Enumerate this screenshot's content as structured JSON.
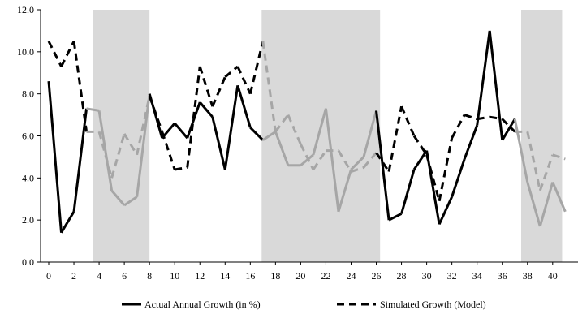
{
  "chart_data": {
    "type": "line",
    "title": "",
    "xlabel": "",
    "ylabel": "",
    "xlim": [
      -0.5,
      40.75
    ],
    "ylim": [
      0,
      12
    ],
    "x_ticks": [
      0,
      2,
      4,
      6,
      8,
      10,
      12,
      14,
      16,
      18,
      20,
      22,
      24,
      26,
      28,
      30,
      32,
      34,
      36,
      38,
      40
    ],
    "y_ticks": [
      0,
      2,
      4,
      6,
      8,
      10,
      12
    ],
    "y_tick_labels": [
      "0.0",
      "2.0",
      "4.0",
      "6.0",
      "8.0",
      "10.0",
      "12.0"
    ],
    "grid": false,
    "legend_position": "bottom",
    "shaded_periods": [
      [
        3.5,
        8
      ],
      [
        16.9,
        26.3
      ],
      [
        37.5,
        40.75
      ]
    ],
    "shaded_color": "#d9d9d9",
    "lighter_in_shaded_color": "#a6a6a6",
    "x": [
      0,
      1,
      2,
      3,
      4,
      5,
      6,
      7,
      8,
      9,
      10,
      11,
      12,
      13,
      14,
      15,
      16,
      17,
      18,
      19,
      20,
      21,
      22,
      23,
      24,
      25,
      26,
      27,
      28,
      29,
      30,
      31,
      32,
      33,
      34,
      35,
      36,
      37,
      38,
      39,
      40,
      41
    ],
    "series": [
      {
        "name": "Actual Annual Growth  (in %)",
        "color": "#000000",
        "dash": "solid",
        "values": [
          8.6,
          1.4,
          2.4,
          7.3,
          7.2,
          3.4,
          2.7,
          3.1,
          8.0,
          5.9,
          6.6,
          5.9,
          7.6,
          6.9,
          4.4,
          8.4,
          6.4,
          5.8,
          6.2,
          4.6,
          4.6,
          5.1,
          7.3,
          2.4,
          4.4,
          5.0,
          7.2,
          2.0,
          2.3,
          4.4,
          5.3,
          1.8,
          3.1,
          4.9,
          6.5,
          11.0,
          5.8,
          6.8,
          3.8,
          1.7,
          3.8,
          2.4
        ]
      },
      {
        "name": "Simulated Growth (Model)",
        "color": "#000000",
        "dash": "dashed",
        "values": [
          10.5,
          9.3,
          10.5,
          6.2,
          6.2,
          4.0,
          6.1,
          5.1,
          7.9,
          6.2,
          4.4,
          4.5,
          9.3,
          7.4,
          8.8,
          9.3,
          8.0,
          10.5,
          6.2,
          7.0,
          5.6,
          4.4,
          5.3,
          5.3,
          4.3,
          4.5,
          5.2,
          4.3,
          7.4,
          6.0,
          5.1,
          2.9,
          5.9,
          7.0,
          6.8,
          6.9,
          6.8,
          6.2,
          6.2,
          3.4,
          5.1,
          4.9
        ]
      }
    ]
  }
}
